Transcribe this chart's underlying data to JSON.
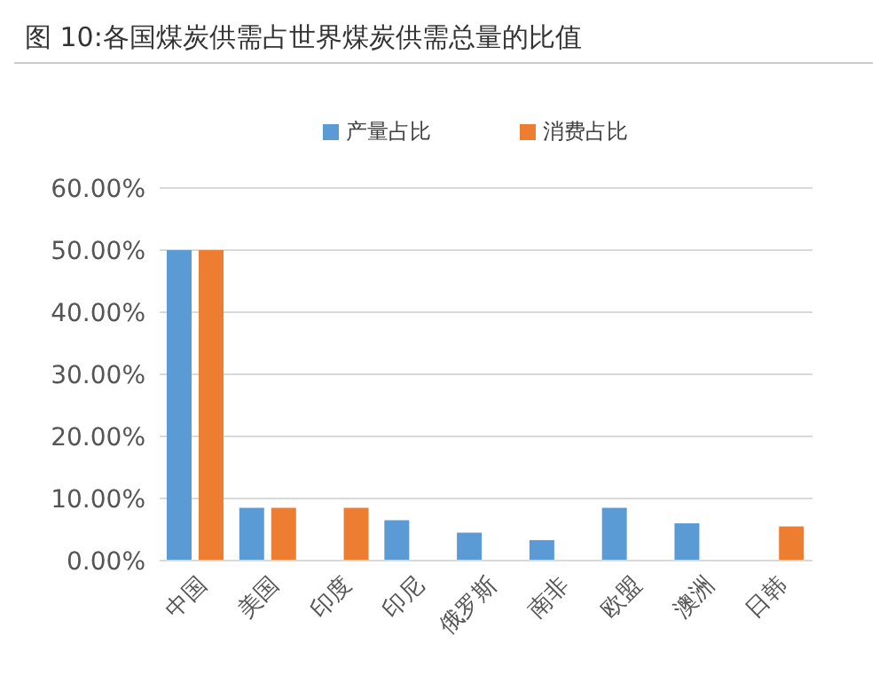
{
  "chart_data": {
    "type": "bar",
    "title": "图 10:各国煤炭供需占世界煤炭供需总量的比值",
    "categories": [
      "中国",
      "美国",
      "印度",
      "印尼",
      "俄罗斯",
      "南非",
      "欧盟",
      "澳洲",
      "日韩"
    ],
    "series": [
      {
        "name": "产量占比",
        "color": "#5b9bd5",
        "values": [
          50,
          8.5,
          null,
          6.5,
          4.5,
          3.3,
          8.5,
          6,
          null
        ]
      },
      {
        "name": "消费占比",
        "color": "#ed7d31",
        "values": [
          50,
          8.5,
          8.5,
          null,
          null,
          null,
          null,
          null,
          5.5
        ]
      }
    ],
    "ylim": [
      0,
      60
    ],
    "yticks": [
      {
        "value": 0,
        "label": "0.00%"
      },
      {
        "value": 10,
        "label": "10.00%"
      },
      {
        "value": 20,
        "label": "20.00%"
      },
      {
        "value": 30,
        "label": "30.00%"
      },
      {
        "value": 40,
        "label": "40.00%"
      },
      {
        "value": 50,
        "label": "50.00%"
      },
      {
        "value": 60,
        "label": "60.00%"
      }
    ],
    "grid": "y",
    "legend": "top"
  }
}
